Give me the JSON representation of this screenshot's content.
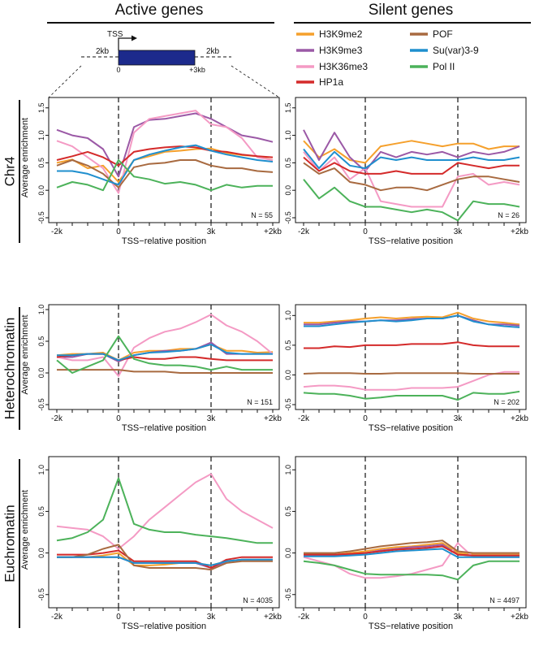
{
  "header": {
    "left_title": "Active genes",
    "right_title": "Silent genes"
  },
  "schematic": {
    "tss_label": "TSS",
    "up_label": "2kb",
    "down_label": "2kb",
    "zero_label": "0",
    "end_label": "+3kb",
    "body_color": "#1c2a8c"
  },
  "legend": {
    "items": [
      {
        "name": "H3K9me2",
        "color": "#f5a02c"
      },
      {
        "name": "POF",
        "color": "#a86a40"
      },
      {
        "name": "H3K9me3",
        "color": "#9b59a6"
      },
      {
        "name": "Su(var)3-9",
        "color": "#1f8fce"
      },
      {
        "name": "H3K36me3",
        "color": "#f49ac4"
      },
      {
        "name": "Pol II",
        "color": "#4cb25a"
      },
      {
        "name": "HP1a",
        "color": "#d42a2a"
      }
    ]
  },
  "row_labels": [
    "Chr4",
    "Heterochromatin",
    "Euchromatin"
  ],
  "axis": {
    "ylabel": "Average enrichment",
    "xlabel": "TSS−relative position",
    "xtick_labels": [
      "-2k",
      "0",
      "3k",
      "+2kb"
    ],
    "ytick_labels": [
      "-0.5",
      "0.0",
      "0.5",
      "1.0",
      "1.5"
    ]
  },
  "chart_data": [
    {
      "type": "line",
      "panel": "Chr4 / Active genes",
      "n_label": "N = 55",
      "x": [
        -2000,
        -1500,
        -1000,
        -500,
        0,
        500,
        1000,
        1500,
        2000,
        2500,
        3000,
        3500,
        4000,
        4500,
        5000
      ],
      "ylim": [
        -0.5,
        1.6
      ],
      "series": [
        {
          "name": "H3K9me2",
          "values": [
            0.5,
            0.56,
            0.4,
            0.45,
            0.15,
            0.55,
            0.62,
            0.7,
            0.72,
            0.75,
            0.76,
            0.68,
            0.64,
            0.62,
            0.55
          ]
        },
        {
          "name": "H3K9me3",
          "values": [
            1.1,
            1.0,
            0.95,
            0.75,
            0.25,
            1.15,
            1.28,
            1.3,
            1.35,
            1.4,
            1.3,
            1.15,
            1.0,
            0.95,
            0.88
          ]
        },
        {
          "name": "H3K36me3",
          "values": [
            0.9,
            0.8,
            0.6,
            0.4,
            -0.05,
            1.05,
            1.3,
            1.35,
            1.4,
            1.45,
            1.2,
            1.15,
            0.95,
            0.6,
            0.55
          ]
        },
        {
          "name": "HP1a",
          "values": [
            0.55,
            0.62,
            0.7,
            0.6,
            0.45,
            0.7,
            0.75,
            0.78,
            0.8,
            0.78,
            0.72,
            0.7,
            0.65,
            0.62,
            0.6
          ]
        },
        {
          "name": "POF",
          "values": [
            0.45,
            0.55,
            0.45,
            0.3,
            0.05,
            0.42,
            0.48,
            0.5,
            0.55,
            0.55,
            0.45,
            0.4,
            0.4,
            0.35,
            0.33
          ]
        },
        {
          "name": "Su(var)3-9",
          "values": [
            0.35,
            0.35,
            0.3,
            0.2,
            0.1,
            0.55,
            0.65,
            0.72,
            0.78,
            0.82,
            0.72,
            0.65,
            0.6,
            0.55,
            0.52
          ]
        },
        {
          "name": "Pol II",
          "values": [
            0.05,
            0.15,
            0.1,
            0.0,
            0.55,
            0.25,
            0.2,
            0.12,
            0.15,
            0.1,
            0.0,
            0.1,
            0.05,
            0.08,
            0.08
          ]
        }
      ]
    },
    {
      "type": "line",
      "panel": "Chr4 / Silent genes",
      "n_label": "N = 26",
      "x": [
        -2000,
        -1500,
        -1000,
        -500,
        0,
        500,
        1000,
        1500,
        2000,
        2500,
        3000,
        3500,
        4000,
        4500,
        5000
      ],
      "ylim": [
        -0.5,
        1.6
      ],
      "series": [
        {
          "name": "H3K9me2",
          "values": [
            0.9,
            0.6,
            0.75,
            0.55,
            0.5,
            0.8,
            0.85,
            0.9,
            0.85,
            0.8,
            0.85,
            0.85,
            0.75,
            0.8,
            0.8
          ]
        },
        {
          "name": "H3K9me3",
          "values": [
            1.1,
            0.55,
            1.05,
            0.6,
            0.35,
            0.7,
            0.6,
            0.7,
            0.65,
            0.7,
            0.6,
            0.7,
            0.65,
            0.7,
            0.8
          ]
        },
        {
          "name": "H3K36me3",
          "values": [
            0.7,
            0.35,
            0.6,
            0.2,
            0.4,
            -0.2,
            -0.25,
            -0.3,
            -0.3,
            -0.3,
            0.25,
            0.3,
            0.1,
            0.15,
            0.1
          ]
        },
        {
          "name": "HP1a",
          "values": [
            0.6,
            0.35,
            0.5,
            0.35,
            0.3,
            0.3,
            0.35,
            0.3,
            0.3,
            0.3,
            0.5,
            0.45,
            0.4,
            0.45,
            0.45
          ]
        },
        {
          "name": "POF",
          "values": [
            0.5,
            0.3,
            0.4,
            0.15,
            0.1,
            0.0,
            0.05,
            0.05,
            0.0,
            0.1,
            0.2,
            0.25,
            0.25,
            0.2,
            0.15
          ]
        },
        {
          "name": "Su(var)3-9",
          "values": [
            0.75,
            0.4,
            0.7,
            0.45,
            0.4,
            0.6,
            0.55,
            0.6,
            0.55,
            0.55,
            0.55,
            0.6,
            0.55,
            0.55,
            0.6
          ]
        },
        {
          "name": "Pol II",
          "values": [
            0.2,
            -0.15,
            0.05,
            -0.2,
            -0.3,
            -0.3,
            -0.35,
            -0.4,
            -0.35,
            -0.4,
            -0.55,
            -0.2,
            -0.25,
            -0.25,
            -0.3
          ]
        }
      ]
    },
    {
      "type": "line",
      "panel": "Heterochromatin / Active genes",
      "n_label": "N = 151",
      "x": [
        -2000,
        -1500,
        -1000,
        -500,
        0,
        500,
        1000,
        1500,
        2000,
        2500,
        3000,
        3500,
        4000,
        4500,
        5000
      ],
      "ylim": [
        -0.5,
        1.0
      ],
      "series": [
        {
          "name": "H3K9me2",
          "values": [
            0.28,
            0.3,
            0.3,
            0.32,
            0.2,
            0.32,
            0.35,
            0.35,
            0.38,
            0.38,
            0.45,
            0.35,
            0.35,
            0.32,
            0.33
          ]
        },
        {
          "name": "H3K9me3",
          "values": [
            0.25,
            0.25,
            0.3,
            0.3,
            0.18,
            0.28,
            0.32,
            0.35,
            0.35,
            0.38,
            0.48,
            0.3,
            0.3,
            0.3,
            0.3
          ]
        },
        {
          "name": "H3K36me3",
          "values": [
            0.25,
            0.2,
            0.2,
            0.25,
            -0.05,
            0.4,
            0.55,
            0.65,
            0.7,
            0.8,
            0.92,
            0.75,
            0.65,
            0.5,
            0.3
          ]
        },
        {
          "name": "HP1a",
          "values": [
            0.25,
            0.28,
            0.3,
            0.3,
            0.2,
            0.25,
            0.22,
            0.22,
            0.25,
            0.25,
            0.22,
            0.2,
            0.2,
            0.2,
            0.2
          ]
        },
        {
          "name": "POF",
          "values": [
            0.05,
            0.05,
            0.05,
            0.05,
            0.05,
            0.02,
            0.02,
            0.02,
            0.0,
            0.0,
            0.0,
            0.0,
            0.0,
            0.0,
            0.0
          ]
        },
        {
          "name": "Su(var)3-9",
          "values": [
            0.28,
            0.28,
            0.3,
            0.3,
            0.2,
            0.28,
            0.32,
            0.33,
            0.35,
            0.38,
            0.45,
            0.32,
            0.3,
            0.3,
            0.3
          ]
        },
        {
          "name": "Pol II",
          "values": [
            0.2,
            0.0,
            0.1,
            0.2,
            0.58,
            0.22,
            0.15,
            0.12,
            0.12,
            0.1,
            0.05,
            0.1,
            0.05,
            0.05,
            0.05
          ]
        }
      ]
    },
    {
      "type": "line",
      "panel": "Heterochromatin / Silent genes",
      "n_label": "N = 202",
      "x": [
        -2000,
        -1500,
        -1000,
        -500,
        0,
        500,
        1000,
        1500,
        2000,
        2500,
        3000,
        3500,
        4000,
        4500,
        5000
      ],
      "ylim": [
        -0.5,
        1.1
      ],
      "series": [
        {
          "name": "H3K9me2",
          "values": [
            0.88,
            0.88,
            0.9,
            0.92,
            0.95,
            0.97,
            0.95,
            0.97,
            0.98,
            0.97,
            1.05,
            0.95,
            0.9,
            0.88,
            0.85
          ]
        },
        {
          "name": "H3K9me3",
          "values": [
            0.85,
            0.85,
            0.88,
            0.9,
            0.9,
            0.92,
            0.92,
            0.94,
            0.95,
            0.95,
            1.0,
            0.92,
            0.85,
            0.85,
            0.83
          ]
        },
        {
          "name": "H3K36me3",
          "values": [
            -0.2,
            -0.18,
            -0.18,
            -0.2,
            -0.25,
            -0.25,
            -0.25,
            -0.22,
            -0.22,
            -0.22,
            -0.2,
            -0.1,
            0.0,
            0.05,
            0.05
          ]
        },
        {
          "name": "HP1a",
          "values": [
            0.45,
            0.45,
            0.48,
            0.47,
            0.5,
            0.5,
            0.5,
            0.52,
            0.52,
            0.52,
            0.55,
            0.5,
            0.48,
            0.48,
            0.48
          ]
        },
        {
          "name": "POF",
          "values": [
            0.02,
            0.03,
            0.03,
            0.03,
            0.02,
            0.02,
            0.03,
            0.03,
            0.03,
            0.03,
            0.03,
            0.02,
            0.02,
            0.02,
            0.02
          ]
        },
        {
          "name": "Su(var)3-9",
          "values": [
            0.82,
            0.82,
            0.85,
            0.88,
            0.9,
            0.92,
            0.9,
            0.92,
            0.95,
            0.95,
            1.0,
            0.9,
            0.85,
            0.82,
            0.8
          ]
        },
        {
          "name": "Pol II",
          "values": [
            -0.3,
            -0.32,
            -0.32,
            -0.35,
            -0.4,
            -0.38,
            -0.35,
            -0.35,
            -0.35,
            -0.35,
            -0.42,
            -0.3,
            -0.32,
            -0.32,
            -0.28
          ]
        }
      ]
    },
    {
      "type": "line",
      "panel": "Euchromatin / Active genes",
      "n_label": "N = 4035",
      "x": [
        -2000,
        -1500,
        -1000,
        -500,
        0,
        500,
        1000,
        1500,
        2000,
        2500,
        3000,
        3500,
        4000,
        4500,
        5000
      ],
      "ylim": [
        -0.6,
        1.1
      ],
      "series": [
        {
          "name": "H3K9me2",
          "values": [
            -0.05,
            -0.05,
            -0.05,
            -0.03,
            0.0,
            -0.15,
            -0.15,
            -0.14,
            -0.12,
            -0.12,
            -0.15,
            -0.1,
            -0.08,
            -0.08,
            -0.08
          ]
        },
        {
          "name": "H3K9me3",
          "values": [
            -0.05,
            -0.05,
            -0.05,
            -0.05,
            -0.05,
            -0.12,
            -0.12,
            -0.12,
            -0.12,
            -0.12,
            -0.18,
            -0.1,
            -0.08,
            -0.08,
            -0.08
          ]
        },
        {
          "name": "H3K36me3",
          "values": [
            0.32,
            0.3,
            0.28,
            0.2,
            0.05,
            0.2,
            0.4,
            0.55,
            0.7,
            0.85,
            0.95,
            0.65,
            0.5,
            0.4,
            0.3
          ]
        },
        {
          "name": "HP1a",
          "values": [
            -0.02,
            -0.02,
            -0.02,
            0.0,
            0.03,
            -0.1,
            -0.1,
            -0.1,
            -0.1,
            -0.1,
            -0.18,
            -0.08,
            -0.05,
            -0.05,
            -0.05
          ]
        },
        {
          "name": "POF",
          "values": [
            -0.05,
            -0.05,
            -0.02,
            0.05,
            0.1,
            -0.15,
            -0.18,
            -0.18,
            -0.18,
            -0.18,
            -0.2,
            -0.12,
            -0.1,
            -0.1,
            -0.1
          ]
        },
        {
          "name": "Su(var)3-9",
          "values": [
            -0.05,
            -0.05,
            -0.05,
            -0.05,
            -0.05,
            -0.12,
            -0.12,
            -0.12,
            -0.12,
            -0.12,
            -0.15,
            -0.1,
            -0.08,
            -0.08,
            -0.08
          ]
        },
        {
          "name": "Pol II",
          "values": [
            0.15,
            0.18,
            0.25,
            0.4,
            0.9,
            0.35,
            0.28,
            0.25,
            0.25,
            0.22,
            0.2,
            0.18,
            0.15,
            0.12,
            0.12
          ]
        }
      ]
    },
    {
      "type": "line",
      "panel": "Euchromatin / Silent genes",
      "n_label": "N = 4497",
      "x": [
        -2000,
        -1500,
        -1000,
        -500,
        0,
        500,
        1000,
        1500,
        2000,
        2500,
        3000,
        3500,
        4000,
        4500,
        5000
      ],
      "ylim": [
        -0.6,
        1.1
      ],
      "series": [
        {
          "name": "H3K9me2",
          "values": [
            -0.02,
            -0.02,
            -0.02,
            0.0,
            0.02,
            0.05,
            0.07,
            0.08,
            0.1,
            0.12,
            0.0,
            -0.02,
            -0.02,
            -0.02,
            -0.02
          ]
        },
        {
          "name": "H3K9me3",
          "values": [
            -0.03,
            -0.03,
            -0.03,
            -0.02,
            0.0,
            0.03,
            0.05,
            0.07,
            0.08,
            0.1,
            -0.02,
            -0.03,
            -0.03,
            -0.03,
            -0.03
          ]
        },
        {
          "name": "H3K36me3",
          "values": [
            -0.05,
            -0.1,
            -0.15,
            -0.25,
            -0.3,
            -0.3,
            -0.28,
            -0.25,
            -0.2,
            -0.15,
            0.12,
            -0.05,
            -0.05,
            -0.05,
            -0.05
          ]
        },
        {
          "name": "HP1a",
          "values": [
            -0.02,
            -0.02,
            -0.02,
            -0.01,
            0.0,
            0.02,
            0.04,
            0.05,
            0.06,
            0.08,
            -0.02,
            -0.03,
            -0.03,
            -0.03,
            -0.03
          ]
        },
        {
          "name": "POF",
          "values": [
            0.0,
            0.0,
            0.0,
            0.02,
            0.05,
            0.08,
            0.1,
            0.12,
            0.13,
            0.15,
            0.02,
            0.0,
            0.0,
            0.0,
            0.0
          ]
        },
        {
          "name": "Su(var)3-9",
          "values": [
            -0.04,
            -0.04,
            -0.04,
            -0.03,
            -0.02,
            0.0,
            0.02,
            0.03,
            0.04,
            0.05,
            -0.05,
            -0.05,
            -0.05,
            -0.05,
            -0.05
          ]
        },
        {
          "name": "Pol II",
          "values": [
            -0.1,
            -0.12,
            -0.15,
            -0.2,
            -0.25,
            -0.26,
            -0.26,
            -0.26,
            -0.26,
            -0.27,
            -0.32,
            -0.15,
            -0.1,
            -0.1,
            -0.1
          ]
        }
      ]
    }
  ]
}
